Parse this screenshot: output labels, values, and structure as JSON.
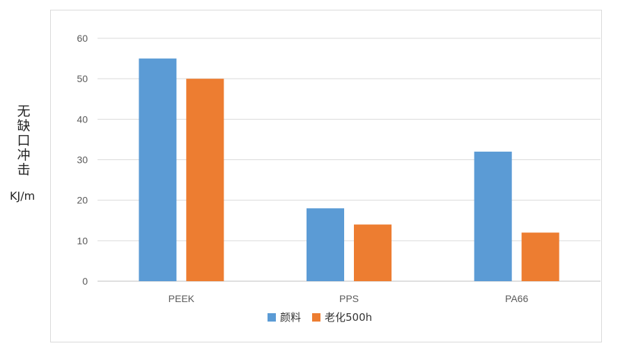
{
  "chart_data": {
    "type": "bar",
    "categories": [
      "PEEK",
      "PPS",
      "PA66"
    ],
    "series": [
      {
        "name": "颜料",
        "values": [
          55,
          18,
          32
        ],
        "color": "#5b9bd5"
      },
      {
        "name": "老化500h",
        "values": [
          50,
          14,
          12
        ],
        "color": "#ed7d31"
      }
    ],
    "ylabel": "无缺口冲击",
    "yunit": "KJ/m",
    "ylim": [
      0,
      60
    ],
    "yticks": [
      0,
      10,
      20,
      30,
      40,
      50,
      60
    ],
    "grid": true,
    "legend_position": "bottom"
  }
}
